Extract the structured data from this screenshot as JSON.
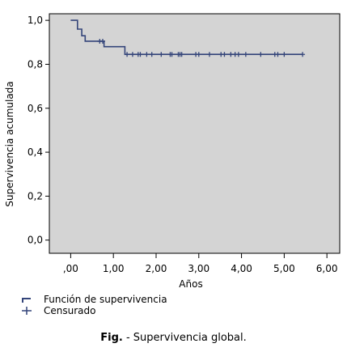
{
  "chart_data": {
    "type": "line",
    "title": "",
    "xlabel": "Años",
    "ylabel": "Supervivencia acumulada",
    "xlim": [
      -0.5,
      6.3
    ],
    "ylim": [
      -0.06,
      1.03
    ],
    "x_ticks": [
      {
        "value": 0,
        "label": ",00"
      },
      {
        "value": 1,
        "label": "1,00"
      },
      {
        "value": 2,
        "label": "2,00"
      },
      {
        "value": 3,
        "label": "3,00"
      },
      {
        "value": 4,
        "label": "4,00"
      },
      {
        "value": 5,
        "label": "5,00"
      },
      {
        "value": 6,
        "label": "6,00"
      }
    ],
    "y_ticks": [
      {
        "value": 0.0,
        "label": "0,0"
      },
      {
        "value": 0.2,
        "label": "0,2"
      },
      {
        "value": 0.4,
        "label": "0,4"
      },
      {
        "value": 0.6,
        "label": "0,6"
      },
      {
        "value": 0.8,
        "label": "0,8"
      },
      {
        "value": 1.0,
        "label": "1,0"
      }
    ],
    "grid": false,
    "plot_background": "#d4d4d4",
    "series": [
      {
        "name": "Función de supervivencia",
        "color": "#34457a",
        "step_points": [
          [
            0.0,
            1.0
          ],
          [
            0.16,
            1.0
          ],
          [
            0.16,
            0.96
          ],
          [
            0.26,
            0.96
          ],
          [
            0.26,
            0.93
          ],
          [
            0.34,
            0.93
          ],
          [
            0.34,
            0.905
          ],
          [
            0.78,
            0.905
          ],
          [
            0.78,
            0.88
          ],
          [
            1.27,
            0.88
          ],
          [
            1.27,
            0.845
          ],
          [
            5.43,
            0.845
          ]
        ]
      }
    ],
    "censored": {
      "name": "Censurado",
      "points": [
        [
          0.68,
          0.905
        ],
        [
          0.75,
          0.905
        ],
        [
          1.32,
          0.845
        ],
        [
          1.45,
          0.845
        ],
        [
          1.58,
          0.845
        ],
        [
          1.63,
          0.845
        ],
        [
          1.78,
          0.845
        ],
        [
          1.9,
          0.845
        ],
        [
          2.12,
          0.845
        ],
        [
          2.33,
          0.845
        ],
        [
          2.37,
          0.845
        ],
        [
          2.52,
          0.845
        ],
        [
          2.56,
          0.845
        ],
        [
          2.6,
          0.845
        ],
        [
          2.93,
          0.845
        ],
        [
          3.0,
          0.845
        ],
        [
          3.25,
          0.845
        ],
        [
          3.52,
          0.845
        ],
        [
          3.6,
          0.845
        ],
        [
          3.75,
          0.845
        ],
        [
          3.85,
          0.845
        ],
        [
          3.93,
          0.845
        ],
        [
          4.1,
          0.845
        ],
        [
          4.45,
          0.845
        ],
        [
          4.78,
          0.845
        ],
        [
          4.85,
          0.845
        ],
        [
          5.0,
          0.845
        ],
        [
          5.43,
          0.845
        ]
      ]
    },
    "legend": {
      "placement": "bottom-left",
      "items": [
        "Función de supervivencia",
        "Censurado"
      ]
    }
  },
  "caption": {
    "label": "Fig.",
    "text": " - Supervivencia global."
  }
}
